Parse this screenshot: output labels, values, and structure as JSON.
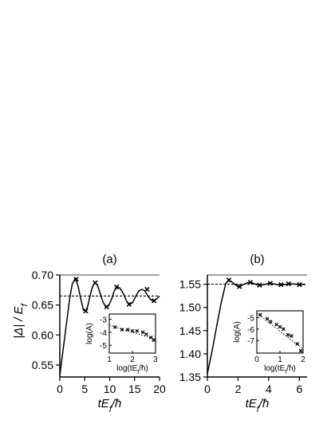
{
  "chart_data": [
    {
      "type": "line",
      "title": "(a)",
      "xlabel": "tE_f/ħ",
      "ylabel": "|Δ| / E_f",
      "xlim": [
        0,
        20
      ],
      "ylim": [
        0.53,
        0.7
      ],
      "xticks": [
        "0",
        "5",
        "10",
        "15",
        "20"
      ],
      "yticks": [
        "0.55",
        "0.60",
        "0.65",
        "0.70"
      ],
      "series": [
        {
          "style": "solid",
          "x": [
            0,
            0.5,
            1,
            1.5,
            2,
            2.5,
            3,
            3.3,
            3.7,
            4.2,
            4.7,
            5.2,
            5.6,
            6.0,
            6.5,
            7.0,
            7.5,
            8.0,
            8.6,
            9.2,
            9.8,
            10.4,
            10.9,
            11.5,
            12.1,
            12.8,
            13.4,
            14.0,
            14.6,
            15.2,
            15.8,
            16.4,
            17.0,
            17.6,
            18.2,
            18.8,
            19.4,
            20.0
          ],
          "y": [
            0.533,
            0.565,
            0.598,
            0.63,
            0.662,
            0.685,
            0.693,
            0.691,
            0.68,
            0.66,
            0.642,
            0.64,
            0.648,
            0.663,
            0.679,
            0.687,
            0.684,
            0.672,
            0.656,
            0.647,
            0.649,
            0.66,
            0.673,
            0.68,
            0.678,
            0.668,
            0.656,
            0.651,
            0.654,
            0.664,
            0.673,
            0.676,
            0.674,
            0.666,
            0.659,
            0.657,
            0.66,
            0.665
          ]
        },
        {
          "style": "dotted",
          "x": [
            0,
            20
          ],
          "y": [
            0.665,
            0.665
          ]
        },
        {
          "style": "markers",
          "x": [
            3.3,
            5.2,
            7.1,
            9.4,
            11.4,
            13.9,
            17.5,
            18.9
          ],
          "y": [
            0.693,
            0.64,
            0.687,
            0.647,
            0.68,
            0.651,
            0.676,
            0.657
          ]
        }
      ],
      "inset": {
        "xlabel": "log(tE_f/ħ)",
        "ylabel": "log(A)",
        "xlim": [
          1,
          3
        ],
        "ylim": [
          -5.6,
          -2.6
        ],
        "xticks": [
          "1",
          "2",
          "3"
        ],
        "yticks": [
          "-3",
          "-4",
          "-5"
        ],
        "points": {
          "x": [
            1.25,
            1.55,
            1.8,
            2.0,
            2.2,
            2.45,
            2.6,
            2.8,
            2.92
          ],
          "y": [
            -3.6,
            -3.8,
            -3.8,
            -3.9,
            -3.9,
            -4.0,
            -4.15,
            -4.4,
            -4.6
          ]
        },
        "fit": {
          "x": [
            1.0,
            3.0
          ],
          "y": [
            -3.45,
            -4.55
          ]
        }
      }
    },
    {
      "type": "line",
      "title": "(b)",
      "xlabel": "tE_f/ħ",
      "ylabel": "",
      "xlim": [
        0,
        6.5
      ],
      "ylim": [
        1.35,
        1.57
      ],
      "xticks": [
        "0",
        "2",
        "4",
        "6"
      ],
      "yticks": [
        "1.35",
        "1.40",
        "1.45",
        "1.50",
        "1.55"
      ],
      "series": [
        {
          "style": "solid",
          "x": [
            0,
            0.3,
            0.6,
            0.9,
            1.2,
            1.4,
            1.6,
            1.8,
            2.0,
            2.2,
            2.4,
            2.6,
            2.8,
            3.0,
            3.2,
            3.5,
            3.8,
            4.0,
            4.3,
            4.6,
            4.9,
            5.2,
            5.5,
            5.8,
            6.1,
            6.4
          ],
          "y": [
            1.357,
            1.405,
            1.458,
            1.51,
            1.552,
            1.559,
            1.555,
            1.549,
            1.545,
            1.547,
            1.55,
            1.553,
            1.554,
            1.552,
            1.549,
            1.548,
            1.55,
            1.552,
            1.551,
            1.549,
            1.549,
            1.55,
            1.551,
            1.55,
            1.549,
            1.55
          ]
        },
        {
          "style": "dotted",
          "x": [
            0,
            6.5
          ],
          "y": [
            1.55,
            1.55
          ]
        },
        {
          "style": "markers",
          "x": [
            1.4,
            2.1,
            2.8,
            3.4,
            4.1,
            4.8,
            5.3,
            6.0
          ],
          "y": [
            1.559,
            1.545,
            1.554,
            1.548,
            1.552,
            1.549,
            1.551,
            1.549
          ]
        }
      ],
      "inset": {
        "xlabel": "log(tE_f/ħ)",
        "ylabel": "log(A)",
        "xlim": [
          0,
          2
        ],
        "ylim": [
          -8.1,
          -4.4
        ],
        "xticks": [
          "0",
          "1",
          "2"
        ],
        "yticks": [
          "-5",
          "-6",
          "-7"
        ],
        "points": {
          "x": [
            0.15,
            0.45,
            0.6,
            0.85,
            1.0,
            1.15,
            1.35,
            1.5,
            1.75,
            1.9
          ],
          "y": [
            -4.75,
            -5.1,
            -5.35,
            -5.6,
            -5.8,
            -6.0,
            -6.5,
            -6.6,
            -7.3,
            -7.9
          ]
        },
        "fit": {
          "x": [
            0,
            2
          ],
          "y": [
            -4.6,
            -7.75
          ]
        }
      }
    }
  ]
}
